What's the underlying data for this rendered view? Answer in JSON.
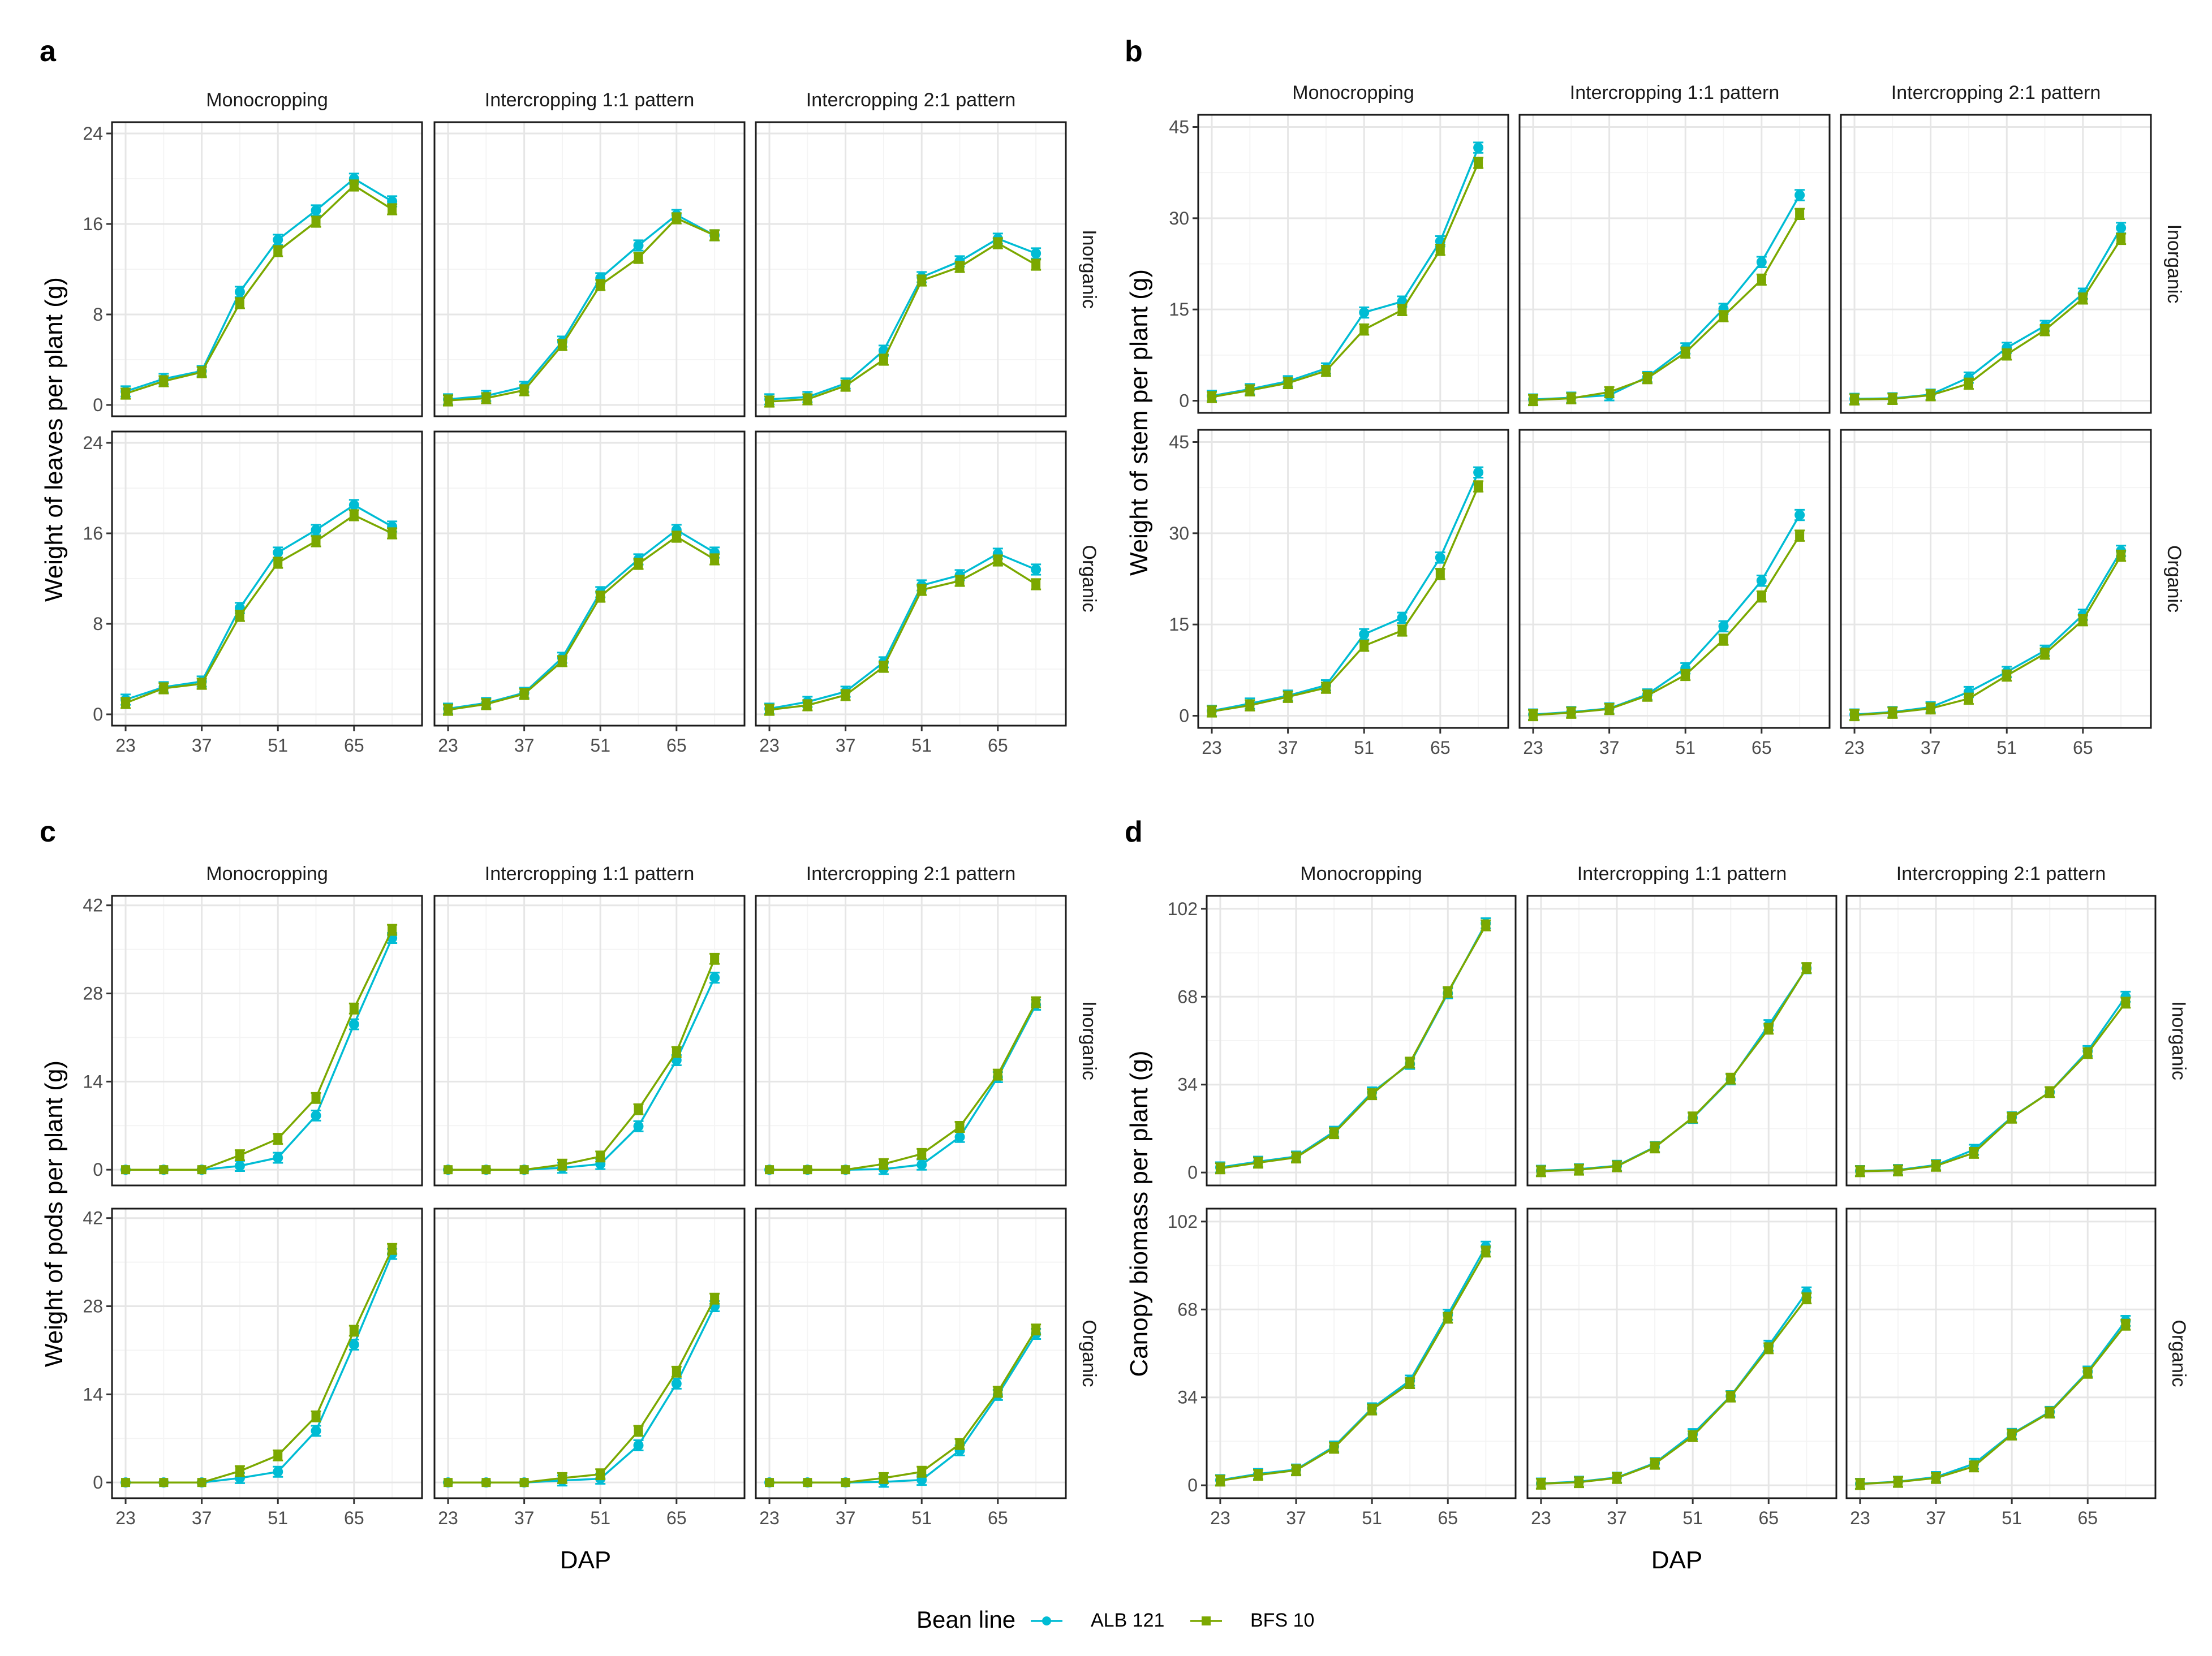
{
  "chart_data": [
    {
      "type": "line",
      "panel": "a",
      "ylabel": "Weight of leaves per plant (g)",
      "xlabel": "",
      "ylim": [
        -1,
        25
      ],
      "yticks": [
        0,
        8,
        16,
        24
      ],
      "columns": [
        "Monocropping",
        "Intercropping 1:1 pattern",
        "Intercropping 2:1 pattern"
      ],
      "rows": [
        "Inorganic",
        "Organic"
      ],
      "facets": [
        {
          "row": "Inorganic",
          "col": "Monocropping",
          "series": [
            {
              "name": "ALB 121",
              "values": [
                1.2,
                2.3,
                3.0,
                10.0,
                14.6,
                17.2,
                20.0,
                18.0
              ]
            },
            {
              "name": "BFS 10",
              "values": [
                1.0,
                2.1,
                2.9,
                9.0,
                13.6,
                16.2,
                19.4,
                17.3
              ]
            }
          ]
        },
        {
          "row": "Inorganic",
          "col": "Intercropping 1:1 pattern",
          "series": [
            {
              "name": "ALB 121",
              "values": [
                0.5,
                0.8,
                1.6,
                5.6,
                11.2,
                14.1,
                16.8,
                15.0
              ]
            },
            {
              "name": "BFS 10",
              "values": [
                0.4,
                0.6,
                1.3,
                5.3,
                10.6,
                13.0,
                16.5,
                15.0
              ]
            }
          ]
        },
        {
          "row": "Inorganic",
          "col": "Intercropping 2:1 pattern",
          "series": [
            {
              "name": "ALB 121",
              "values": [
                0.5,
                0.7,
                1.9,
                4.8,
                11.3,
                12.7,
                14.7,
                13.4
              ]
            },
            {
              "name": "BFS 10",
              "values": [
                0.3,
                0.5,
                1.7,
                4.0,
                11.0,
                12.2,
                14.3,
                12.4
              ]
            }
          ]
        },
        {
          "row": "Organic",
          "col": "Monocropping",
          "series": [
            {
              "name": "ALB 121",
              "values": [
                1.3,
                2.4,
                2.9,
                9.4,
                14.3,
                16.3,
                18.5,
                16.6
              ]
            },
            {
              "name": "BFS 10",
              "values": [
                1.0,
                2.3,
                2.7,
                8.7,
                13.4,
                15.3,
                17.6,
                16.0
              ]
            }
          ]
        },
        {
          "row": "Organic",
          "col": "Intercropping 1:1 pattern",
          "series": [
            {
              "name": "ALB 121",
              "values": [
                0.5,
                1.0,
                1.9,
                5.0,
                10.8,
                13.7,
                16.3,
                14.3
              ]
            },
            {
              "name": "BFS 10",
              "values": [
                0.4,
                0.9,
                1.8,
                4.7,
                10.4,
                13.3,
                15.7,
                13.7
              ]
            }
          ]
        },
        {
          "row": "Organic",
          "col": "Intercropping 2:1 pattern",
          "series": [
            {
              "name": "ALB 121",
              "values": [
                0.5,
                1.1,
                2.0,
                4.6,
                11.4,
                12.3,
                14.2,
                12.8
              ]
            },
            {
              "name": "BFS 10",
              "values": [
                0.4,
                0.8,
                1.7,
                4.2,
                11.0,
                11.8,
                13.6,
                11.5
              ]
            }
          ]
        }
      ]
    },
    {
      "type": "line",
      "panel": "b",
      "ylabel": "Weight of stem per plant (g)",
      "xlabel": "",
      "ylim": [
        -2,
        47
      ],
      "yticks": [
        0,
        15,
        30,
        45
      ],
      "columns": [
        "Monocropping",
        "Intercropping 1:1 pattern",
        "Intercropping 2:1 pattern"
      ],
      "rows": [
        "Inorganic",
        "Organic"
      ],
      "facets": [
        {
          "row": "Inorganic",
          "col": "Monocropping",
          "series": [
            {
              "name": "ALB 121",
              "values": [
                0.8,
                1.9,
                3.2,
                5.3,
                14.5,
                16.3,
                26.2,
                41.6
              ]
            },
            {
              "name": "BFS 10",
              "values": [
                0.6,
                1.7,
                2.9,
                4.9,
                11.7,
                14.9,
                24.8,
                39.1
              ]
            }
          ]
        },
        {
          "row": "Inorganic",
          "col": "Intercropping 1:1 pattern",
          "series": [
            {
              "name": "ALB 121",
              "values": [
                0.2,
                0.5,
                0.9,
                3.9,
                8.6,
                15.1,
                22.8,
                33.8
              ]
            },
            {
              "name": "BFS 10",
              "values": [
                0.1,
                0.4,
                1.4,
                3.7,
                7.9,
                13.9,
                19.9,
                30.7
              ]
            }
          ]
        },
        {
          "row": "Inorganic",
          "col": "Intercropping 2:1 pattern",
          "series": [
            {
              "name": "ALB 121",
              "values": [
                0.3,
                0.4,
                1.0,
                3.8,
                8.7,
                12.3,
                17.6,
                28.4
              ]
            },
            {
              "name": "BFS 10",
              "values": [
                0.2,
                0.3,
                0.9,
                2.8,
                7.6,
                11.6,
                16.8,
                26.6
              ]
            }
          ]
        },
        {
          "row": "Organic",
          "col": "Monocropping",
          "series": [
            {
              "name": "ALB 121",
              "values": [
                0.8,
                2.0,
                3.3,
                5.0,
                13.4,
                16.1,
                26.0,
                40.0
              ]
            },
            {
              "name": "BFS 10",
              "values": [
                0.7,
                1.7,
                3.1,
                4.6,
                11.5,
                14.0,
                23.3,
                37.7
              ]
            }
          ]
        },
        {
          "row": "Organic",
          "col": "Intercropping 1:1 pattern",
          "series": [
            {
              "name": "ALB 121",
              "values": [
                0.2,
                0.6,
                1.2,
                3.5,
                7.8,
                14.7,
                22.2,
                33.0
              ]
            },
            {
              "name": "BFS 10",
              "values": [
                0.1,
                0.5,
                1.1,
                3.3,
                6.7,
                12.5,
                19.6,
                29.6
              ]
            }
          ]
        },
        {
          "row": "Organic",
          "col": "Intercropping 2:1 pattern",
          "series": [
            {
              "name": "ALB 121",
              "values": [
                0.2,
                0.6,
                1.4,
                3.9,
                7.2,
                10.7,
                16.6,
                27.1
              ]
            },
            {
              "name": "BFS 10",
              "values": [
                0.1,
                0.5,
                1.2,
                2.8,
                6.6,
                10.2,
                15.7,
                26.3
              ]
            }
          ]
        }
      ]
    },
    {
      "type": "line",
      "panel": "c",
      "ylabel": "Weight of pods per plant (g)",
      "xlabel": "",
      "ylim": [
        -2.5,
        43.5
      ],
      "yticks": [
        0,
        14,
        28,
        42
      ],
      "columns": [
        "Monocropping",
        "Intercropping 1:1 pattern",
        "Intercropping 2:1 pattern"
      ],
      "rows": [
        "Inorganic",
        "Organic"
      ],
      "facets": [
        {
          "row": "Inorganic",
          "col": "Monocropping",
          "series": [
            {
              "name": "ALB 121",
              "values": [
                0,
                0,
                0,
                0.6,
                1.9,
                8.6,
                23.1,
                36.8
              ]
            },
            {
              "name": "BFS 10",
              "values": [
                0,
                0,
                0,
                2.3,
                4.9,
                11.4,
                25.6,
                38.1
              ]
            }
          ]
        },
        {
          "row": "Inorganic",
          "col": "Intercropping 1:1 pattern",
          "series": [
            {
              "name": "ALB 121",
              "values": [
                0,
                0,
                0,
                0.3,
                0.9,
                6.9,
                17.4,
                30.5
              ]
            },
            {
              "name": "BFS 10",
              "values": [
                0,
                0,
                0,
                0.8,
                2.1,
                9.6,
                18.7,
                33.5
              ]
            }
          ]
        },
        {
          "row": "Inorganic",
          "col": "Intercropping 2:1 pattern",
          "series": [
            {
              "name": "ALB 121",
              "values": [
                0,
                0,
                0,
                0.1,
                0.8,
                5.2,
                14.7,
                26.2
              ]
            },
            {
              "name": "BFS 10",
              "values": [
                0,
                0,
                0,
                0.9,
                2.5,
                6.8,
                15.1,
                26.6
              ]
            }
          ]
        },
        {
          "row": "Organic",
          "col": "Monocropping",
          "series": [
            {
              "name": "ALB 121",
              "values": [
                0,
                0,
                0,
                0.7,
                1.7,
                8.2,
                21.9,
                36.3
              ]
            },
            {
              "name": "BFS 10",
              "values": [
                0,
                0,
                0,
                1.8,
                4.3,
                10.5,
                24.1,
                37.1
              ]
            }
          ]
        },
        {
          "row": "Organic",
          "col": "Intercropping 1:1 pattern",
          "series": [
            {
              "name": "ALB 121",
              "values": [
                0,
                0,
                0,
                0.3,
                0.6,
                5.9,
                15.7,
                28.0
              ]
            },
            {
              "name": "BFS 10",
              "values": [
                0,
                0,
                0,
                0.7,
                1.3,
                8.2,
                17.6,
                29.2
              ]
            }
          ]
        },
        {
          "row": "Organic",
          "col": "Intercropping 2:1 pattern",
          "series": [
            {
              "name": "ALB 121",
              "values": [
                0,
                0,
                0,
                0.1,
                0.4,
                5.1,
                13.9,
                23.6
              ]
            },
            {
              "name": "BFS 10",
              "values": [
                0,
                0,
                0,
                0.7,
                1.7,
                6.1,
                14.4,
                24.3
              ]
            }
          ]
        }
      ]
    },
    {
      "type": "line",
      "panel": "d",
      "ylabel": "Canopy biomass per plant (g)",
      "xlabel": "",
      "ylim": [
        -5,
        107
      ],
      "yticks": [
        0,
        34,
        68,
        102
      ],
      "columns": [
        "Monocropping",
        "Intercropping 1:1 pattern",
        "Intercropping 2:1 pattern"
      ],
      "rows": [
        "Inorganic",
        "Organic"
      ],
      "facets": [
        {
          "row": "Inorganic",
          "col": "Monocropping",
          "series": [
            {
              "name": "ALB 121",
              "values": [
                2.0,
                4.2,
                6.2,
                15.8,
                31.0,
                42.0,
                69.3,
                96.4
              ]
            },
            {
              "name": "BFS 10",
              "values": [
                1.6,
                3.8,
                5.8,
                15.2,
                30.3,
                42.5,
                69.8,
                95.6
              ]
            }
          ]
        },
        {
          "row": "Inorganic",
          "col": "Intercropping 1:1 pattern",
          "series": [
            {
              "name": "ALB 121",
              "values": [
                0.7,
                1.3,
                2.6,
                9.9,
                21.1,
                36.0,
                57.0,
                79.0
              ]
            },
            {
              "name": "BFS 10",
              "values": [
                0.5,
                1.1,
                2.4,
                9.7,
                21.3,
                36.3,
                55.6,
                79.1
              ]
            }
          ]
        },
        {
          "row": "Inorganic",
          "col": "Intercropping 2:1 pattern",
          "series": [
            {
              "name": "ALB 121",
              "values": [
                0.6,
                1.0,
                2.9,
                8.8,
                21.4,
                31.1,
                47.0,
                68.0
              ]
            },
            {
              "name": "BFS 10",
              "values": [
                0.5,
                0.8,
                2.6,
                7.6,
                21.2,
                31.1,
                46.2,
                65.7
              ]
            }
          ]
        },
        {
          "row": "Organic",
          "col": "Monocropping",
          "series": [
            {
              "name": "ALB 121",
              "values": [
                2.0,
                4.4,
                6.1,
                15.0,
                29.8,
                40.5,
                66.0,
                92.3
              ]
            },
            {
              "name": "BFS 10",
              "values": [
                1.8,
                4.0,
                5.8,
                14.5,
                29.3,
                39.5,
                64.8,
                90.4
              ]
            }
          ]
        },
        {
          "row": "Organic",
          "col": "Intercropping 1:1 pattern",
          "series": [
            {
              "name": "ALB 121",
              "values": [
                0.7,
                1.4,
                3.0,
                8.6,
                19.8,
                34.5,
                54.0,
                74.6
              ]
            },
            {
              "name": "BFS 10",
              "values": [
                0.6,
                1.2,
                2.8,
                8.3,
                19.0,
                34.3,
                53.0,
                72.3
              ]
            }
          ]
        },
        {
          "row": "Organic",
          "col": "Intercropping 2:1 pattern",
          "series": [
            {
              "name": "ALB 121",
              "values": [
                0.6,
                1.4,
                3.2,
                8.3,
                19.9,
                28.4,
                44.0,
                63.6
              ]
            },
            {
              "name": "BFS 10",
              "values": [
                0.5,
                1.3,
                2.8,
                7.3,
                19.6,
                28.1,
                43.5,
                62.1
              ]
            }
          ]
        }
      ]
    }
  ],
  "x_values": [
    23,
    30,
    37,
    44,
    51,
    58,
    65,
    72
  ],
  "x_ticks": [
    23,
    37,
    51,
    65
  ],
  "x_range": [
    20.5,
    77.5
  ],
  "xlabel": "DAP",
  "legend": {
    "title": "Bean line",
    "entries": [
      "ALB 121",
      "BFS 10"
    ]
  },
  "series_colors": {
    "ALB 121": "#00BCD4",
    "BFS 10": "#7BA800"
  },
  "grid_colors": {
    "major": "#e6e6e6",
    "minor": "#f4f4f4"
  },
  "error_bar": 0.035
}
